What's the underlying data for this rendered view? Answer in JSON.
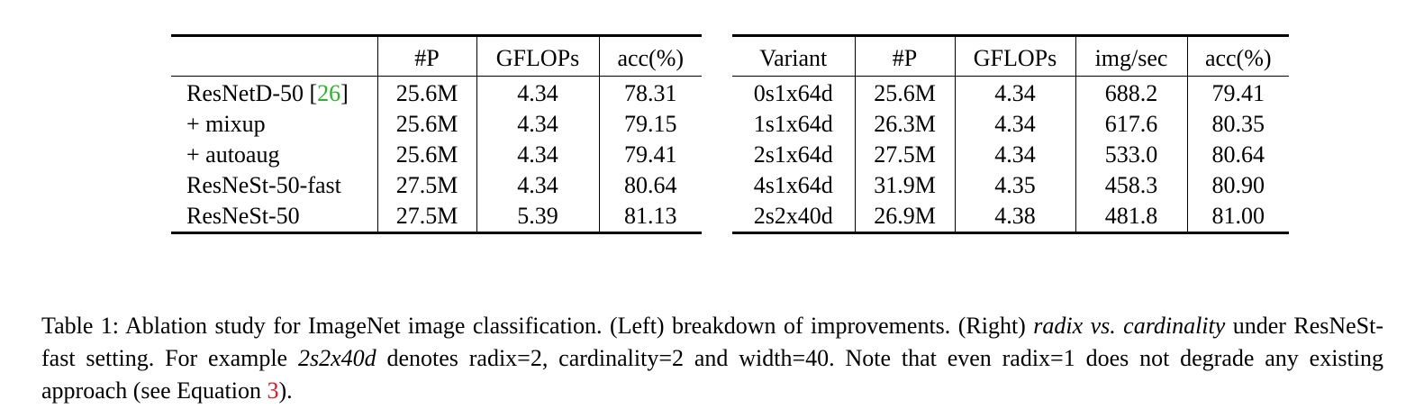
{
  "left_table": {
    "headers": [
      "",
      "#P",
      "GFLOPs",
      "acc(%)"
    ],
    "rows": [
      {
        "name": "ResNetD-50",
        "citation": "26",
        "params": "25.6M",
        "gflops": "4.34",
        "acc": "78.31"
      },
      {
        "name": "+ mixup",
        "citation": "",
        "params": "25.6M",
        "gflops": "4.34",
        "acc": "79.15"
      },
      {
        "name": "+ autoaug",
        "citation": "",
        "params": "25.6M",
        "gflops": "4.34",
        "acc": "79.41"
      },
      {
        "name": "ResNeSt-50-fast",
        "citation": "",
        "params": "27.5M",
        "gflops": "4.34",
        "acc": "80.64"
      },
      {
        "name": "ResNeSt-50",
        "citation": "",
        "params": "27.5M",
        "gflops": "5.39",
        "acc": "81.13"
      }
    ]
  },
  "right_table": {
    "headers": [
      "Variant",
      "#P",
      "GFLOPs",
      "img/sec",
      "acc(%)"
    ],
    "rows": [
      {
        "variant": "0s1x64d",
        "params": "25.6M",
        "gflops": "4.34",
        "img_sec": "688.2",
        "acc": "79.41"
      },
      {
        "variant": "1s1x64d",
        "params": "26.3M",
        "gflops": "4.34",
        "img_sec": "617.6",
        "acc": "80.35"
      },
      {
        "variant": "2s1x64d",
        "params": "27.5M",
        "gflops": "4.34",
        "img_sec": "533.0",
        "acc": "80.64"
      },
      {
        "variant": "4s1x64d",
        "params": "31.9M",
        "gflops": "4.35",
        "img_sec": "458.3",
        "acc": "80.90"
      },
      {
        "variant": "2s2x40d",
        "params": "26.9M",
        "gflops": "4.38",
        "img_sec": "481.8",
        "acc": "81.00"
      }
    ]
  },
  "caption": {
    "label": "Table 1:",
    "part1": " Ablation study for ImageNet image classification. (Left) breakdown of improvements. (Right) ",
    "italic1": "radix vs. cardinality",
    "part2": " under ResNeSt-fast setting. For example ",
    "italic2": "2s2x40d",
    "part3": " denotes radix=2, cardinality=2 and width=40. Note that even radix=1 does not degrade any existing approach (see Equation ",
    "eq_ref": "3",
    "part4": ")."
  },
  "colors": {
    "citation_link": "#22b822",
    "equation_link": "#e0171b"
  }
}
